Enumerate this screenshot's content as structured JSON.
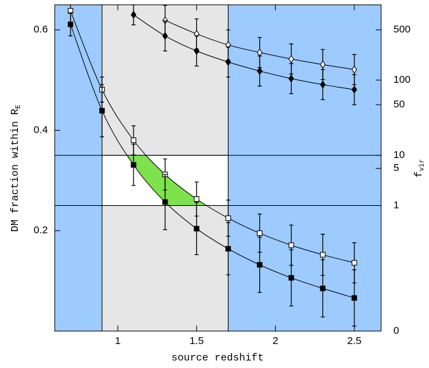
{
  "chart_data": {
    "type": "scatter",
    "x_label": "source redshift",
    "y_label": "DM fraction within R",
    "y_label_sub": "E",
    "y2_label": "f",
    "y2_label_sub": "vir",
    "xlim": [
      0.6,
      2.67
    ],
    "ylim": [
      0,
      0.65
    ],
    "xticks": [
      1,
      1.5,
      2,
      2.5
    ],
    "yticks": [
      0.2,
      0.4,
      0.6
    ],
    "y2ticks": [
      500,
      100,
      50,
      10,
      5,
      1,
      0
    ],
    "y2_fraction": [
      0.6,
      0.5,
      0.451,
      0.35,
      0.324,
      0.25,
      0
    ],
    "background_color": "#9ecbff",
    "shaded_x": [
      0.9,
      1.7
    ],
    "shaded_color": "#e6e6e6",
    "band_y": [
      0.25,
      0.35
    ],
    "band_color": "#ffffff",
    "allowed_color": "#7ee24e",
    "series": [
      {
        "marker": "square",
        "filled": false,
        "color": "#000000",
        "x": [
          0.7,
          0.9,
          1.1,
          1.3,
          1.5,
          1.7,
          1.9,
          2.1,
          2.3,
          2.5
        ],
        "values": [
          0.638,
          0.481,
          0.38,
          0.312,
          0.263,
          0.225,
          0.195,
          0.171,
          0.152,
          0.136
        ],
        "errors": [
          0.025,
          0.025,
          0.029,
          0.031,
          0.034,
          0.036,
          0.038,
          0.04,
          0.041,
          0.04
        ]
      },
      {
        "marker": "square",
        "filled": true,
        "color": "#000000",
        "x": [
          0.7,
          0.9,
          1.1,
          1.3,
          1.5,
          1.7,
          1.9,
          2.1,
          2.3,
          2.5
        ],
        "values": [
          0.611,
          0.439,
          0.331,
          0.257,
          0.204,
          0.164,
          0.132,
          0.106,
          0.085,
          0.066
        ],
        "errors": [
          0.023,
          0.052,
          0.041,
          0.055,
          0.052,
          0.052,
          0.055,
          0.056,
          0.057,
          0.056
        ]
      },
      {
        "marker": "diamond",
        "filled": false,
        "color": "#000000",
        "x": [
          1.3,
          1.5,
          1.7,
          1.9,
          2.1,
          2.3,
          2.5
        ],
        "values": [
          0.619,
          0.592,
          0.57,
          0.555,
          0.542,
          0.531,
          0.521
        ],
        "errors": [
          0.03,
          0.03,
          0.03,
          0.03,
          0.03,
          0.03,
          0.03
        ]
      },
      {
        "marker": "diamond",
        "filled": true,
        "color": "#000000",
        "x": [
          1.1,
          1.3,
          1.5,
          1.7,
          1.9,
          2.1,
          2.3,
          2.5
        ],
        "values": [
          0.63,
          0.588,
          0.558,
          0.536,
          0.518,
          0.503,
          0.491,
          0.481
        ],
        "errors": [
          0.02,
          0.03,
          0.03,
          0.03,
          0.03,
          0.03,
          0.03,
          0.03
        ]
      }
    ]
  }
}
